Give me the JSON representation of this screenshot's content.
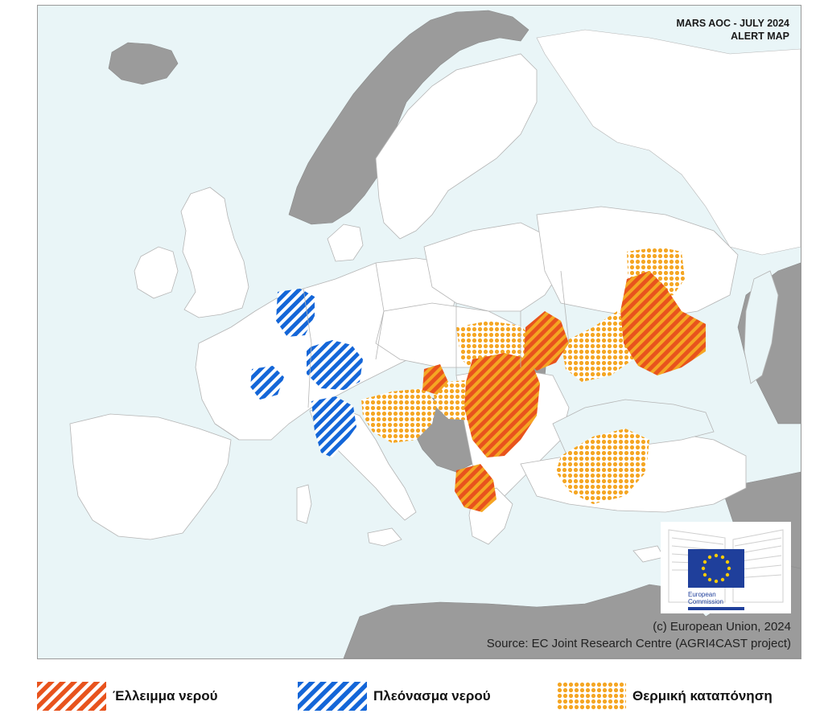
{
  "map": {
    "title_line1": "MARS AOC - JULY 2024",
    "title_line2": "ALERT MAP",
    "copyright": "(c) European Union, 2024",
    "source": "Source: EC Joint Research Centre (AGRI4CAST project)",
    "logo_line1": "European",
    "logo_line2": "Commission",
    "colors": {
      "sea": "#e9f5f7",
      "land": "#ffffff",
      "non_eu_land": "#9b9b9b",
      "borders": "#b5b5b5",
      "water_deficit": "#e8531d",
      "water_surplus": "#1466d8",
      "heat_stress": "#f5a623",
      "eu_blue": "#1f3f9b",
      "eu_star": "#ffcc00"
    }
  },
  "legend": [
    {
      "label": "Έλλειμμα νερού",
      "pattern": "deficit"
    },
    {
      "label": "Πλεόνασμα νερού",
      "pattern": "surplus"
    },
    {
      "label": "Θερμική καταπόνηση",
      "pattern": "heat"
    }
  ]
}
